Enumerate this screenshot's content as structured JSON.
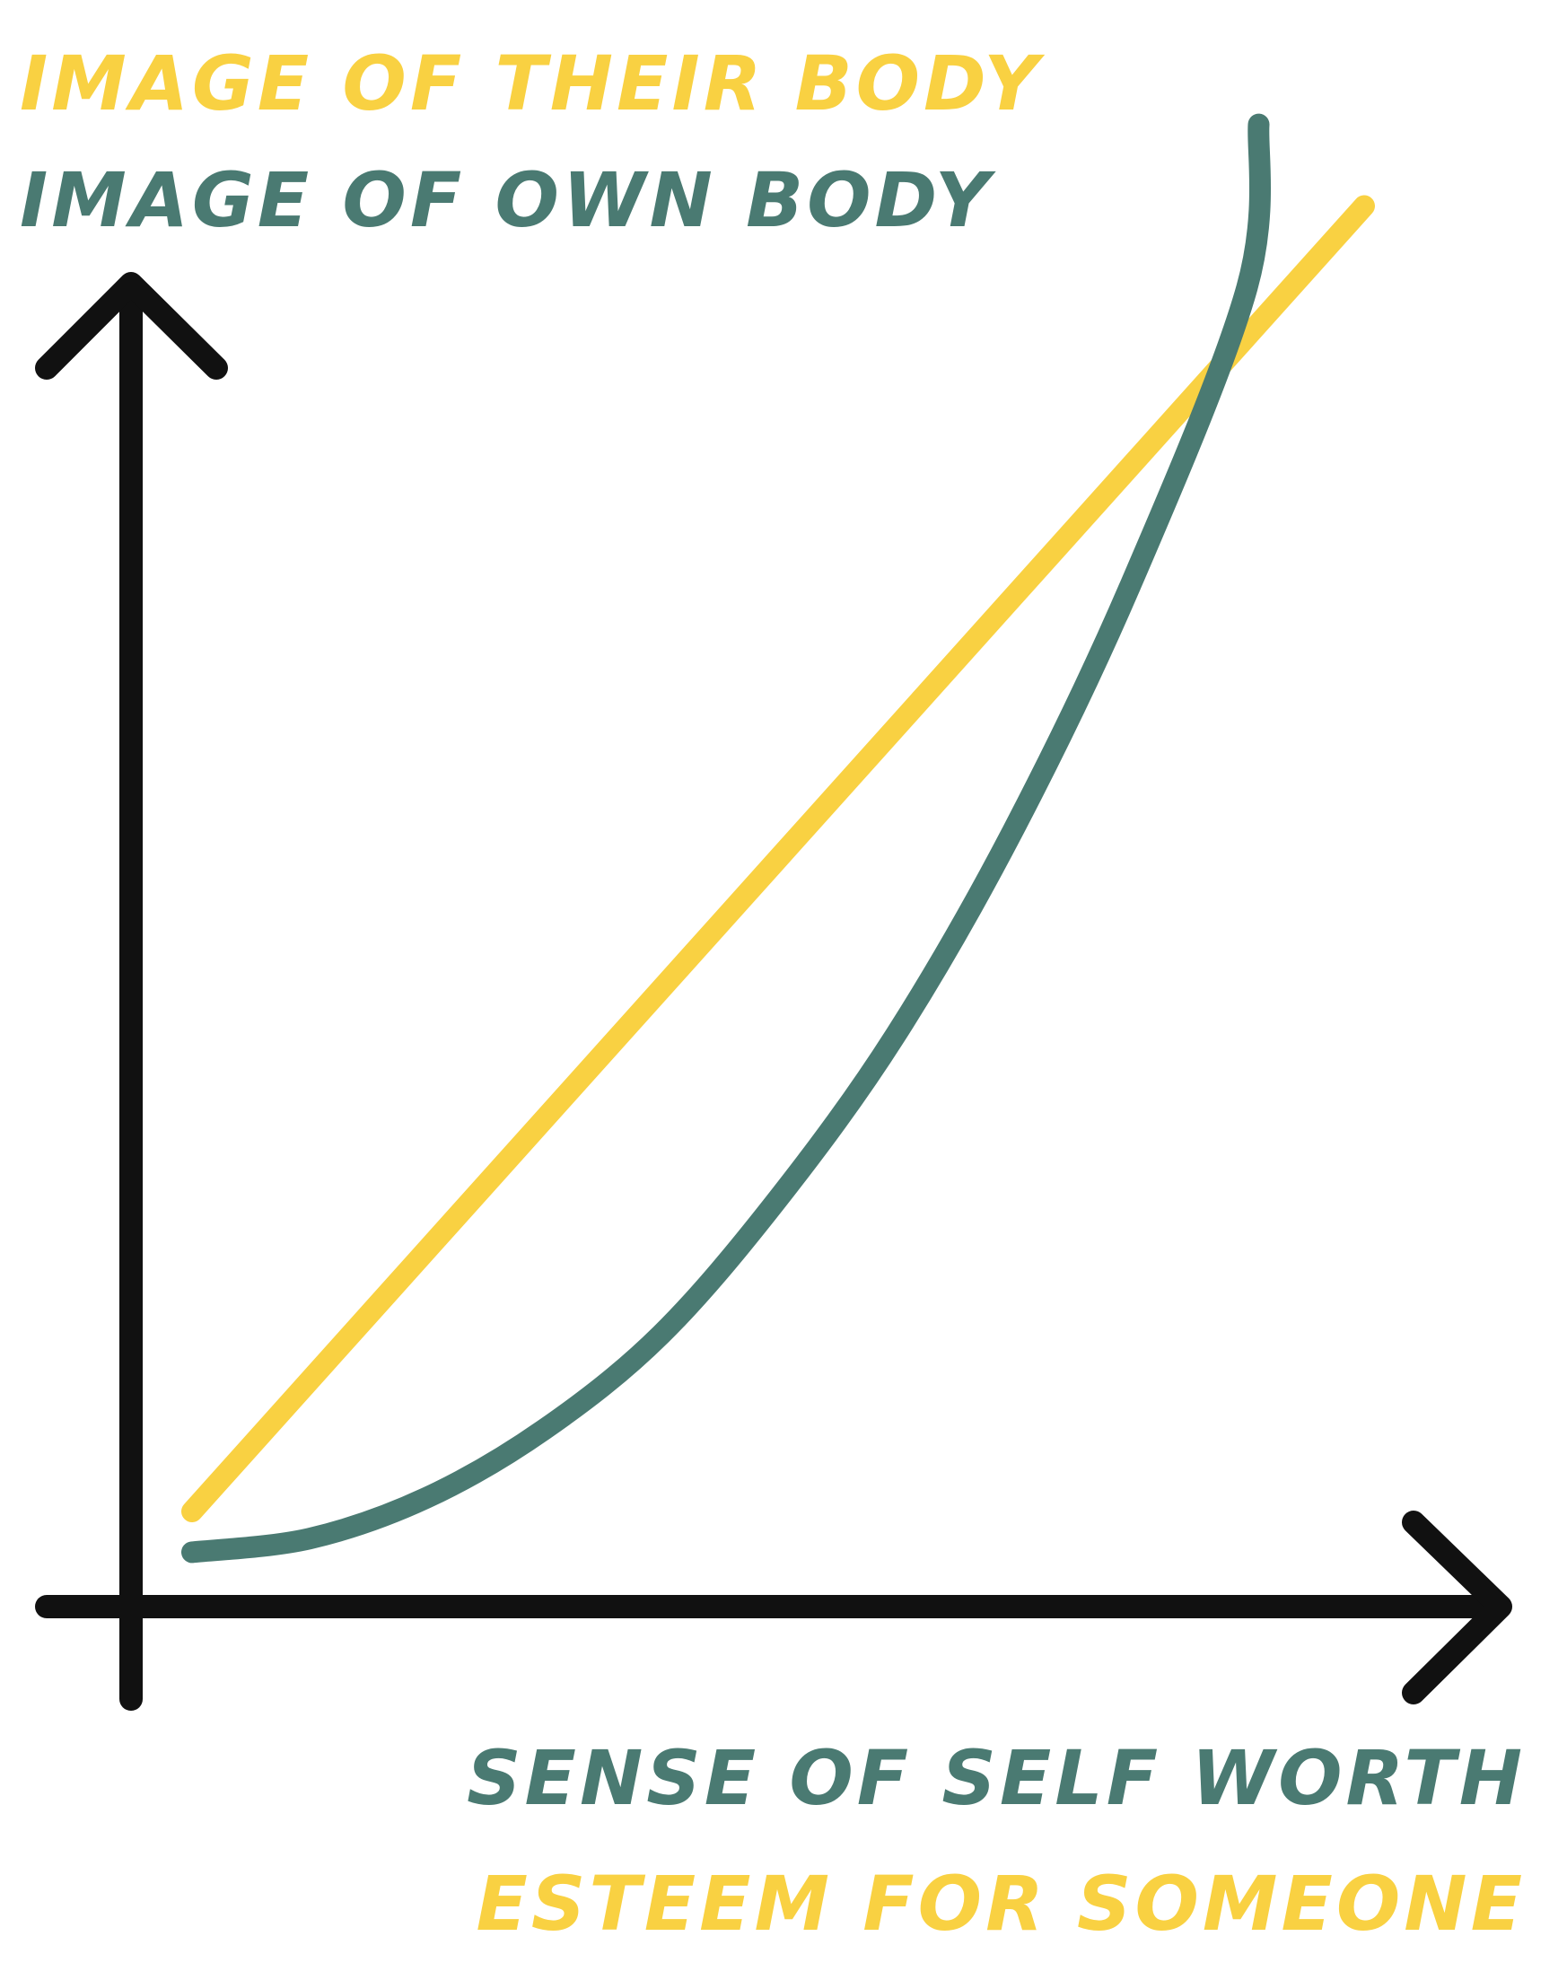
{
  "chart_data": {
    "type": "line",
    "title": "",
    "xlabel": "",
    "ylabel": "",
    "grid": false,
    "legend": "none",
    "axis_labels": {
      "y_top": {
        "text": "IMAGE OF THEIR BODY",
        "color": "#F9D142"
      },
      "y_bottom": {
        "text": "IMAGE OF OWN BODY",
        "color": "#4A7A72"
      },
      "x_top": {
        "text": "SENSE OF SELF WORTH",
        "color": "#4A7A72"
      },
      "x_bottom": {
        "text": "ESTEEM FOR SOMEONE",
        "color": "#F9D142"
      }
    },
    "xlim": [
      0,
      1
    ],
    "ylim": [
      0,
      1
    ],
    "series": [
      {
        "color": "#F9D142",
        "shape": "linear",
        "x": [
          0.0,
          0.25,
          0.5,
          0.75,
          1.0
        ],
        "y": [
          0.07,
          0.31,
          0.55,
          0.79,
          1.03
        ]
      },
      {
        "color": "#4A7A72",
        "shape": "convex",
        "x": [
          0.0,
          0.1,
          0.2,
          0.3,
          0.4,
          0.5,
          0.6,
          0.7,
          0.8,
          0.9,
          0.91
        ],
        "y": [
          0.04,
          0.05,
          0.08,
          0.13,
          0.2,
          0.3,
          0.42,
          0.57,
          0.75,
          0.97,
          1.09
        ]
      }
    ],
    "colors": {
      "axis": "#111111",
      "yellow": "#F9D142",
      "teal": "#4A7A72"
    }
  }
}
